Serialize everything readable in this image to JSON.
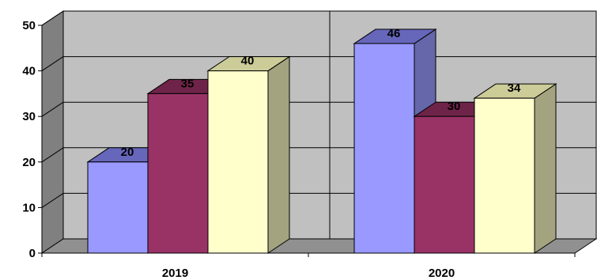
{
  "chart_data": {
    "type": "bar",
    "title": "",
    "xlabel": "",
    "ylabel": "",
    "ylim": [
      0,
      50
    ],
    "yticks": [
      "0",
      "10",
      "20",
      "30",
      "40",
      "50"
    ],
    "grid": true,
    "legend": "none",
    "categories": [
      "2019",
      "2020"
    ],
    "series": [
      {
        "values": [
          20,
          46
        ],
        "color": "#9999ff",
        "top_color": "#6666bb",
        "side_color": "#6666aa"
      },
      {
        "values": [
          35,
          30
        ],
        "color": "#993366",
        "top_color": "#6e2448",
        "side_color": "#6e2448"
      },
      {
        "values": [
          40,
          34
        ],
        "color": "#ffffcc",
        "top_color": "#cccc99",
        "side_color": "#a3a380"
      }
    ],
    "data_labels": [
      [
        "20",
        "46"
      ],
      [
        "35",
        "30"
      ],
      [
        "40",
        "34"
      ]
    ],
    "colors": {
      "wall": "#c0c0c0",
      "floor": "#909090",
      "wall_side": "#808080"
    }
  }
}
